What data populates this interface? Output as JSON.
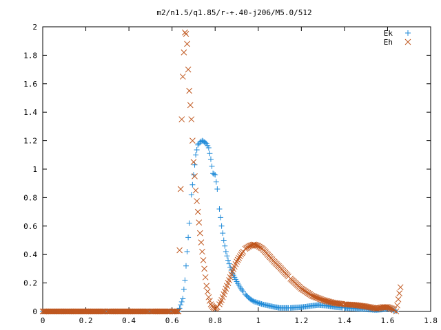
{
  "chart_data": {
    "type": "scatter",
    "title": "m2/n1.5/q1.85/r-+.40-j206/M5.0/512",
    "xlabel": "",
    "ylabel": "",
    "xlim": [
      0,
      1.8
    ],
    "ylim": [
      0,
      2
    ],
    "grid": false,
    "legend": "top-right",
    "x_ticks": [
      "0",
      "0.2",
      "0.4",
      "0.6",
      "0.8",
      "1",
      "1.2",
      "1.4",
      "1.6",
      "1.8"
    ],
    "y_ticks": [
      "0",
      "0.2",
      "0.4",
      "0.6",
      "0.8",
      "1",
      "1.2",
      "1.4",
      "1.6",
      "1.8",
      "2"
    ],
    "series": [
      {
        "name": "Ek",
        "marker": "plus",
        "color": "#1f8ad8",
        "x": [
          0.0,
          0.1,
          0.2,
          0.3,
          0.4,
          0.5,
          0.6,
          0.63,
          0.65,
          0.66,
          0.67,
          0.68,
          0.69,
          0.7,
          0.71,
          0.72,
          0.73,
          0.74,
          0.75,
          0.76,
          0.77,
          0.78,
          0.79,
          0.8,
          0.81,
          0.82,
          0.83,
          0.84,
          0.85,
          0.86,
          0.87,
          0.88,
          0.9,
          0.92,
          0.94,
          0.96,
          0.98,
          1.0,
          1.02,
          1.05,
          1.08,
          1.1,
          1.15,
          1.2,
          1.25,
          1.28,
          1.32,
          1.36,
          1.4,
          1.45,
          1.5,
          1.55,
          1.58,
          1.6,
          1.62,
          1.64
        ],
        "y": [
          0.0,
          0.0,
          0.0,
          0.0,
          0.0,
          0.0,
          0.0,
          0.0,
          0.09,
          0.22,
          0.42,
          0.62,
          0.82,
          0.96,
          1.1,
          1.17,
          1.19,
          1.2,
          1.19,
          1.18,
          1.15,
          1.07,
          0.97,
          0.96,
          0.86,
          0.72,
          0.6,
          0.5,
          0.42,
          0.36,
          0.31,
          0.27,
          0.21,
          0.16,
          0.12,
          0.09,
          0.07,
          0.06,
          0.05,
          0.04,
          0.03,
          0.025,
          0.025,
          0.03,
          0.04,
          0.045,
          0.04,
          0.03,
          0.025,
          0.02,
          0.015,
          0.01,
          0.015,
          0.02,
          0.015,
          0.0
        ]
      },
      {
        "name": "Eh",
        "marker": "cross",
        "color": "#c0571e",
        "x": [
          0.0,
          0.1,
          0.2,
          0.3,
          0.4,
          0.5,
          0.6,
          0.63,
          0.64,
          0.645,
          0.65,
          0.655,
          0.66,
          0.665,
          0.67,
          0.675,
          0.68,
          0.685,
          0.69,
          0.7,
          0.71,
          0.72,
          0.73,
          0.74,
          0.75,
          0.76,
          0.77,
          0.78,
          0.79,
          0.8,
          0.81,
          0.82,
          0.83,
          0.84,
          0.85,
          0.86,
          0.88,
          0.9,
          0.92,
          0.94,
          0.96,
          0.98,
          1.0,
          1.02,
          1.05,
          1.08,
          1.1,
          1.15,
          1.2,
          1.25,
          1.3,
          1.35,
          1.4,
          1.45,
          1.5,
          1.55,
          1.58,
          1.6,
          1.62,
          1.64,
          1.66
        ],
        "y": [
          0.0,
          0.0,
          0.0,
          0.0,
          0.0,
          0.0,
          0.0,
          0.0,
          0.86,
          1.35,
          1.65,
          1.82,
          1.96,
          1.95,
          1.88,
          1.7,
          1.55,
          1.45,
          1.35,
          1.05,
          0.85,
          0.7,
          0.55,
          0.42,
          0.3,
          0.18,
          0.1,
          0.05,
          0.03,
          0.02,
          0.03,
          0.05,
          0.08,
          0.12,
          0.16,
          0.2,
          0.28,
          0.35,
          0.4,
          0.44,
          0.46,
          0.47,
          0.46,
          0.44,
          0.39,
          0.34,
          0.31,
          0.23,
          0.16,
          0.11,
          0.08,
          0.06,
          0.05,
          0.045,
          0.035,
          0.02,
          0.03,
          0.03,
          0.02,
          0.0,
          0.17
        ]
      }
    ]
  }
}
